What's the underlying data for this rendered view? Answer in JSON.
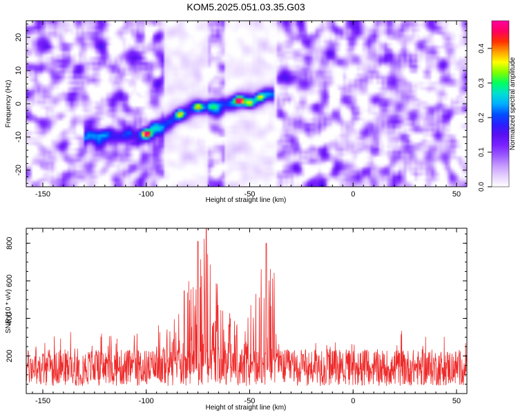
{
  "title": "KOM5.2025.051.03.35.G03",
  "colors": {
    "snr_line": "#ee2a2a",
    "colormap": [
      "#ffffff",
      "#e6d2ff",
      "#c79cff",
      "#9b5bff",
      "#7a22ff",
      "#5a10f0",
      "#2a1fff",
      "#0050ff",
      "#00b0ff",
      "#00e0d0",
      "#00ff60",
      "#80ff00",
      "#ffff00",
      "#ffa000",
      "#ff3000",
      "#ff0060",
      "#ff00a0"
    ]
  },
  "chart_data": [
    {
      "type": "heatmap",
      "title": "KOM5.2025.051.03.35.G03",
      "xlabel": "Height of straight line (km)",
      "ylabel": "Frequency (Hz)",
      "xlim": [
        -158,
        55
      ],
      "ylim": [
        -25,
        25
      ],
      "x_ticks": [
        -150,
        -100,
        -50,
        0,
        50
      ],
      "x_tick_labels": [
        "-150",
        "-100",
        "-50",
        "0",
        "50"
      ],
      "y_ticks": [
        -20,
        -10,
        0,
        10,
        20
      ],
      "y_tick_labels": [
        "-20",
        "-10",
        "0",
        "10",
        "20"
      ],
      "colorbar": {
        "label": "Normalized spectral amplitude",
        "range": [
          0.0,
          0.48
        ],
        "ticks": [
          0.0,
          0.1,
          0.2,
          0.3,
          0.4
        ],
        "tick_labels": [
          "0.0",
          "0.1",
          "0.2",
          "0.3",
          "0.4"
        ]
      },
      "background_noise_level": 0.08,
      "signal_ridge": {
        "description_points_km_hz": [
          [
            -125,
            -10
          ],
          [
            -110,
            -10
          ],
          [
            -100,
            -9
          ],
          [
            -90,
            -6
          ],
          [
            -82,
            -3
          ],
          [
            -75,
            -1
          ],
          [
            -65,
            -1
          ],
          [
            -55,
            1
          ],
          [
            -48,
            1
          ],
          [
            -42,
            3
          ]
        ],
        "peak_amplitude": 0.46
      },
      "peaks": [
        {
          "x": -100,
          "y": -9,
          "value": 0.46
        },
        {
          "x": -84,
          "y": -3,
          "value": 0.3
        },
        {
          "x": -75,
          "y": -1,
          "value": 0.28
        },
        {
          "x": -55,
          "y": 1,
          "value": 0.46
        },
        {
          "x": -50,
          "y": 0,
          "value": 0.25
        },
        {
          "x": -45,
          "y": 2,
          "value": 0.22
        }
      ],
      "low_noise_bands_km": [
        [
          -92,
          -70
        ],
        [
          -62,
          -37
        ]
      ]
    },
    {
      "type": "line",
      "xlabel": "Height of straight line (km)",
      "ylabel": "SNR (10 * v/v)",
      "xlim": [
        -158,
        55
      ],
      "ylim": [
        0,
        880
      ],
      "x_ticks": [
        -150,
        -100,
        -50,
        0,
        50
      ],
      "x_tick_labels": [
        "-150",
        "-100",
        "-50",
        "0",
        "50"
      ],
      "y_ticks": [
        200,
        400,
        600,
        800
      ],
      "y_tick_labels": [
        "200",
        "400",
        "600",
        "800"
      ],
      "baseline_mean": 130,
      "baseline_spread": 110,
      "envelope_km_snr": [
        [
          -158,
          250
        ],
        [
          -140,
          330
        ],
        [
          -120,
          320
        ],
        [
          -105,
          360
        ],
        [
          -95,
          380
        ],
        [
          -85,
          420
        ],
        [
          -80,
          620
        ],
        [
          -75,
          810
        ],
        [
          -72,
          880
        ],
        [
          -68,
          700
        ],
        [
          -62,
          500
        ],
        [
          -55,
          360
        ],
        [
          -48,
          520
        ],
        [
          -42,
          800
        ],
        [
          -38,
          650
        ],
        [
          -34,
          260
        ],
        [
          -20,
          270
        ],
        [
          0,
          280
        ],
        [
          15,
          300
        ],
        [
          30,
          360
        ],
        [
          40,
          330
        ],
        [
          55,
          280
        ]
      ],
      "peaks": [
        {
          "x": -75,
          "y": 810
        },
        {
          "x": -71,
          "y": 880
        },
        {
          "x": -42,
          "y": 800
        }
      ]
    }
  ]
}
